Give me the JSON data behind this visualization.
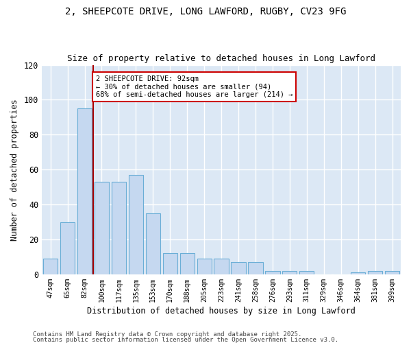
{
  "title1": "2, SHEEPCOTE DRIVE, LONG LAWFORD, RUGBY, CV23 9FG",
  "title2": "Size of property relative to detached houses in Long Lawford",
  "xlabel": "Distribution of detached houses by size in Long Lawford",
  "ylabel": "Number of detached properties",
  "categories": [
    "47sqm",
    "65sqm",
    "82sqm",
    "100sqm",
    "117sqm",
    "135sqm",
    "153sqm",
    "170sqm",
    "188sqm",
    "205sqm",
    "223sqm",
    "241sqm",
    "258sqm",
    "276sqm",
    "293sqm",
    "311sqm",
    "329sqm",
    "346sqm",
    "364sqm",
    "381sqm",
    "399sqm"
  ],
  "values": [
    9,
    30,
    95,
    53,
    53,
    57,
    35,
    12,
    12,
    9,
    9,
    7,
    7,
    2,
    2,
    2,
    0,
    0,
    1,
    2,
    2
  ],
  "bar_color": "#c5d8f0",
  "bar_edge_color": "#6aaed6",
  "vline_x": 2.5,
  "annotation_text": "2 SHEEPCOTE DRIVE: 92sqm\n← 30% of detached houses are smaller (94)\n68% of semi-detached houses are larger (214) →",
  "annotation_box_facecolor": "#ffffff",
  "annotation_box_edgecolor": "#cc0000",
  "vline_color": "#aa0000",
  "plot_bg_color": "#dce8f5",
  "fig_bg_color": "#ffffff",
  "grid_color": "#ffffff",
  "ylim": [
    0,
    120
  ],
  "yticks": [
    0,
    20,
    40,
    60,
    80,
    100,
    120
  ],
  "footnote1": "Contains HM Land Registry data © Crown copyright and database right 2025.",
  "footnote2": "Contains public sector information licensed under the Open Government Licence v3.0."
}
